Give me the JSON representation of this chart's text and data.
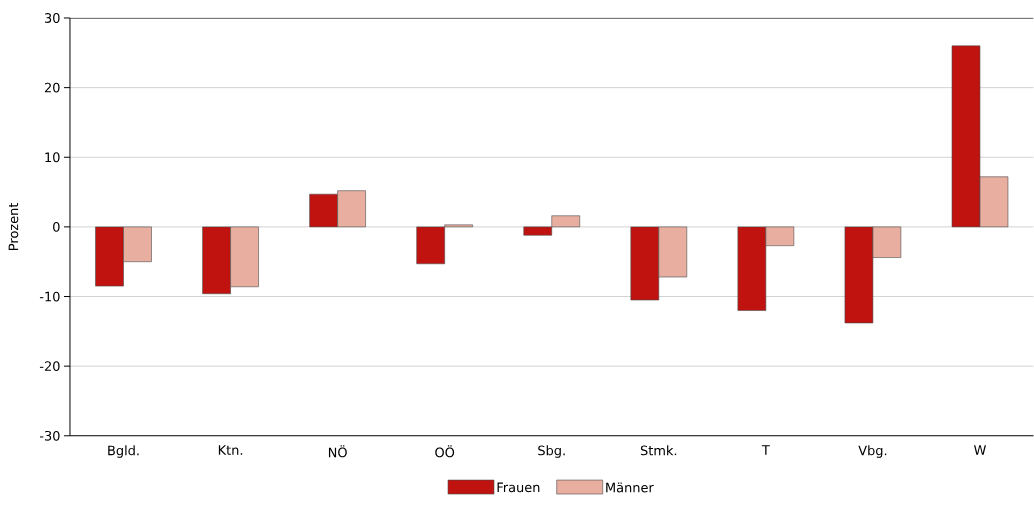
{
  "chart_data": {
    "type": "bar",
    "ylabel": "Prozent",
    "categories": [
      "Bgld.",
      "Ktn.",
      "NÖ",
      "OÖ",
      "Sbg.",
      "Stmk.",
      "T",
      "Vbg.",
      "W"
    ],
    "series": [
      {
        "name": "Frauen",
        "color": "#c0120f",
        "values": [
          -8.5,
          -9.6,
          4.7,
          -5.3,
          -1.2,
          -10.5,
          -12,
          -13.8,
          26
        ]
      },
      {
        "name": "Männer",
        "color": "#e8aea0",
        "values": [
          -5,
          -8.6,
          5.2,
          0.3,
          1.6,
          -7.2,
          -2.7,
          -4.4,
          7.2
        ]
      }
    ],
    "ylim": [
      -30,
      30
    ],
    "yticks": [
      -30,
      -20,
      -10,
      0,
      10,
      20,
      30
    ],
    "grid": "y",
    "legend": "bottom"
  }
}
